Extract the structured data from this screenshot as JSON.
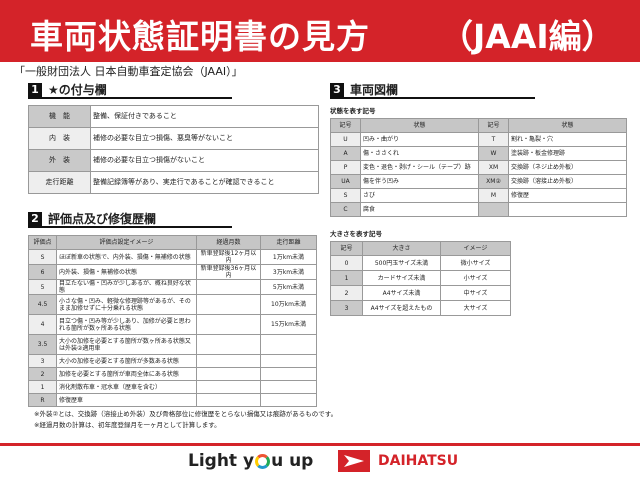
{
  "header": {
    "title": "車両状態証明書の見方",
    "title_suffix": "（JAAI編）",
    "color": "#d42329"
  },
  "subtitle": "「一般財団法人 日本自動車査定協会（JAAI）」",
  "s1": {
    "num": "1",
    "title": "★の付与欄",
    "rows": [
      [
        "機　能",
        "整備、保証付きであること"
      ],
      [
        "内　装",
        "補修の必要な目立つ損傷、悪臭等がないこと"
      ],
      [
        "外　装",
        "補修の必要な目立つ損傷がないこと"
      ],
      [
        "走行距離",
        "整備記録簿等があり、実走行であることが確認できること"
      ]
    ]
  },
  "s2": {
    "num": "2",
    "title": "評価点及び修復歴欄",
    "headers": [
      "評価点",
      "評価点設定イメージ",
      "経過月数",
      "走行距離"
    ],
    "rows": [
      [
        "S",
        "ほぼ新車の状態で、内外装、損傷・無補修の状態",
        "新車登録後12ヶ月以内",
        "1万km未満"
      ],
      [
        "6",
        "内外装、損傷・無補修の状態",
        "新車登録後36ヶ月以内",
        "3万km未満"
      ],
      [
        "5",
        "目立たない傷・凹みが少しあるが、概ね良好な状態",
        "",
        "5万km未満"
      ],
      [
        "4.5",
        "小さな傷・凹み、軽微な修理跡等があるが、そのまま加修せずに十分乗れる状態",
        "",
        "10万km未満"
      ],
      [
        "4",
        "目立つ傷・凹み等が少しあり、加修が必要と思われる箇所が数ヶ所ある状態",
        "",
        "15万km未満"
      ],
      [
        "3.5",
        "大小の加修を必要とする箇所が数ヶ所ある状態又は外装②適用車",
        "",
        ""
      ],
      [
        "3",
        "大小の加修を必要とする箇所が多数ある状態",
        "",
        ""
      ],
      [
        "2",
        "加修を必要とする箇所が車両全体にある状態",
        "",
        ""
      ],
      [
        "1",
        "消化剤散布車・冠水車（歴車を含む）",
        "",
        ""
      ],
      [
        "R",
        "修復歴車",
        "",
        ""
      ]
    ],
    "notes": [
      "※外装②とは、交換跡（溶接止め外装）及び骨格部位に修復歴をとらない損傷又は痕跡があるものです。",
      "※経過月数の計算は、初年度登録月を一ヶ月として計算します。"
    ]
  },
  "s3": {
    "num": "3",
    "title": "車両図欄",
    "label1": "状態を表す記号",
    "headers1": [
      "記号",
      "状態",
      "記号",
      "状態"
    ],
    "rows1": [
      [
        "U",
        "凹み・曲がり",
        "T",
        "割れ・亀裂・穴"
      ],
      [
        "A",
        "傷・ささくれ",
        "W",
        "塗装跡・板金修理跡"
      ],
      [
        "P",
        "変色・退色・剥げ・シール（テープ）跡",
        "XM",
        "交換跡（ネジ止め外板）"
      ],
      [
        "UA",
        "傷を伴う凹み",
        "XM②",
        "交換跡（溶接止め外板）"
      ],
      [
        "S",
        "さび",
        "M",
        "修復歴"
      ],
      [
        "C",
        "腐食",
        "",
        ""
      ]
    ],
    "label2": "大きさを表す記号",
    "headers2": [
      "記号",
      "大きさ",
      "イメージ"
    ],
    "rows2": [
      [
        "0",
        "500円玉サイズ未満",
        "微小サイズ"
      ],
      [
        "1",
        "カードサイズ未満",
        "小サイズ"
      ],
      [
        "2",
        "A4サイズ未満",
        "中サイズ"
      ],
      [
        "3",
        "A4サイズを超えたもの",
        "大サイズ"
      ]
    ]
  },
  "footer": {
    "slogan_a": "Light y",
    "slogan_b": "u up",
    "brand": "DAIHATSU"
  }
}
